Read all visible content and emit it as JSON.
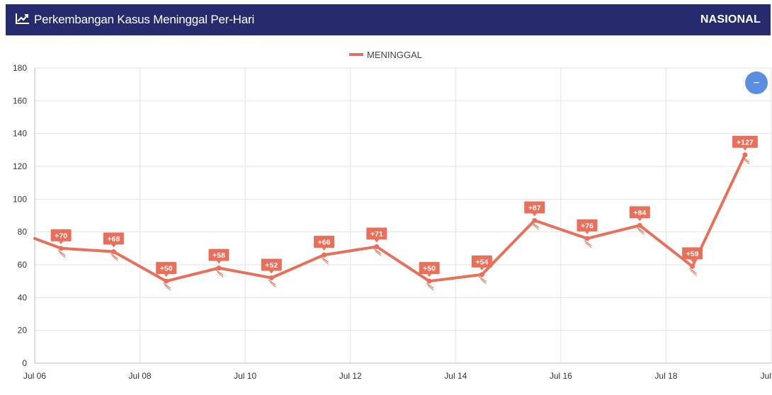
{
  "header": {
    "title": "Perkembangan Kasus Meninggal Per-Hari",
    "scope": "NASIONAL",
    "icon": "line-chart-icon"
  },
  "colors": {
    "header_bg": "#262b6e",
    "series": "#e8705a",
    "zoom_button": "#5b8ee0",
    "grid": "#e2e2e2"
  },
  "zoom_button": {
    "icon": "minus-icon",
    "label": "−"
  },
  "chart_data": {
    "type": "line",
    "title": "Perkembangan Kasus Meninggal Per-Hari",
    "xlabel": "",
    "ylabel": "",
    "ylim": [
      0,
      180
    ],
    "yticks": [
      0,
      20,
      40,
      60,
      80,
      100,
      120,
      140,
      160,
      180
    ],
    "xlim": [
      "2020-07-06",
      "2020-07-20"
    ],
    "xtick_labels": [
      "Jul 06",
      "Jul 08",
      "Jul 10",
      "Jul 12",
      "Jul 14",
      "Jul 16",
      "Jul 18",
      "Jul"
    ],
    "legend": {
      "entries": [
        "MENINGGAL"
      ],
      "position": "top-center"
    },
    "grid": true,
    "series": [
      {
        "name": "MENINGGAL",
        "x": [
          "2020-07-06",
          "2020-07-07",
          "2020-07-08",
          "2020-07-09",
          "2020-07-10",
          "2020-07-11",
          "2020-07-12",
          "2020-07-13",
          "2020-07-14",
          "2020-07-15",
          "2020-07-16",
          "2020-07-17",
          "2020-07-18",
          "2020-07-19"
        ],
        "values": [
          70,
          68,
          50,
          58,
          52,
          66,
          71,
          50,
          54,
          87,
          76,
          84,
          59,
          127
        ],
        "labels": [
          "+70",
          "+68",
          "+50",
          "+58",
          "+52",
          "+66",
          "+71",
          "+50",
          "+54",
          "+87",
          "+76",
          "+84",
          "+59",
          "+127"
        ],
        "leading_value": 76
      }
    ]
  }
}
